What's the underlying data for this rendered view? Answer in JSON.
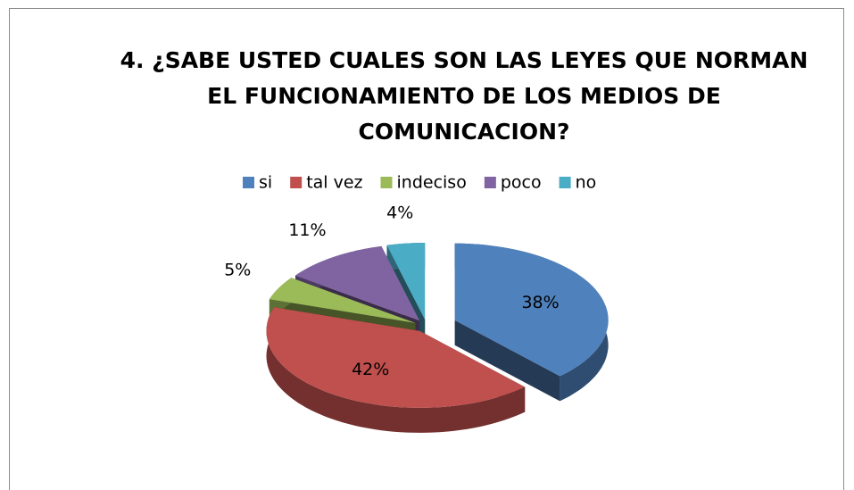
{
  "chart_data": {
    "type": "pie",
    "title": "4. ¿SABE USTED CUALES SON LAS LEYES QUE NORMAN EL FUNCIONAMIENTO DE LOS MEDIOS DE COMUNICACION?",
    "categories": [
      "si",
      "tal vez",
      "indeciso",
      "poco",
      "no"
    ],
    "values": [
      38,
      42,
      5,
      11,
      4
    ],
    "value_labels": [
      "38%",
      "42%",
      "5%",
      "11%",
      "4%"
    ],
    "colors": [
      "#4f81bd",
      "#c0504d",
      "#9bbb59",
      "#8064a2",
      "#4bacc6"
    ],
    "legend": "top"
  }
}
